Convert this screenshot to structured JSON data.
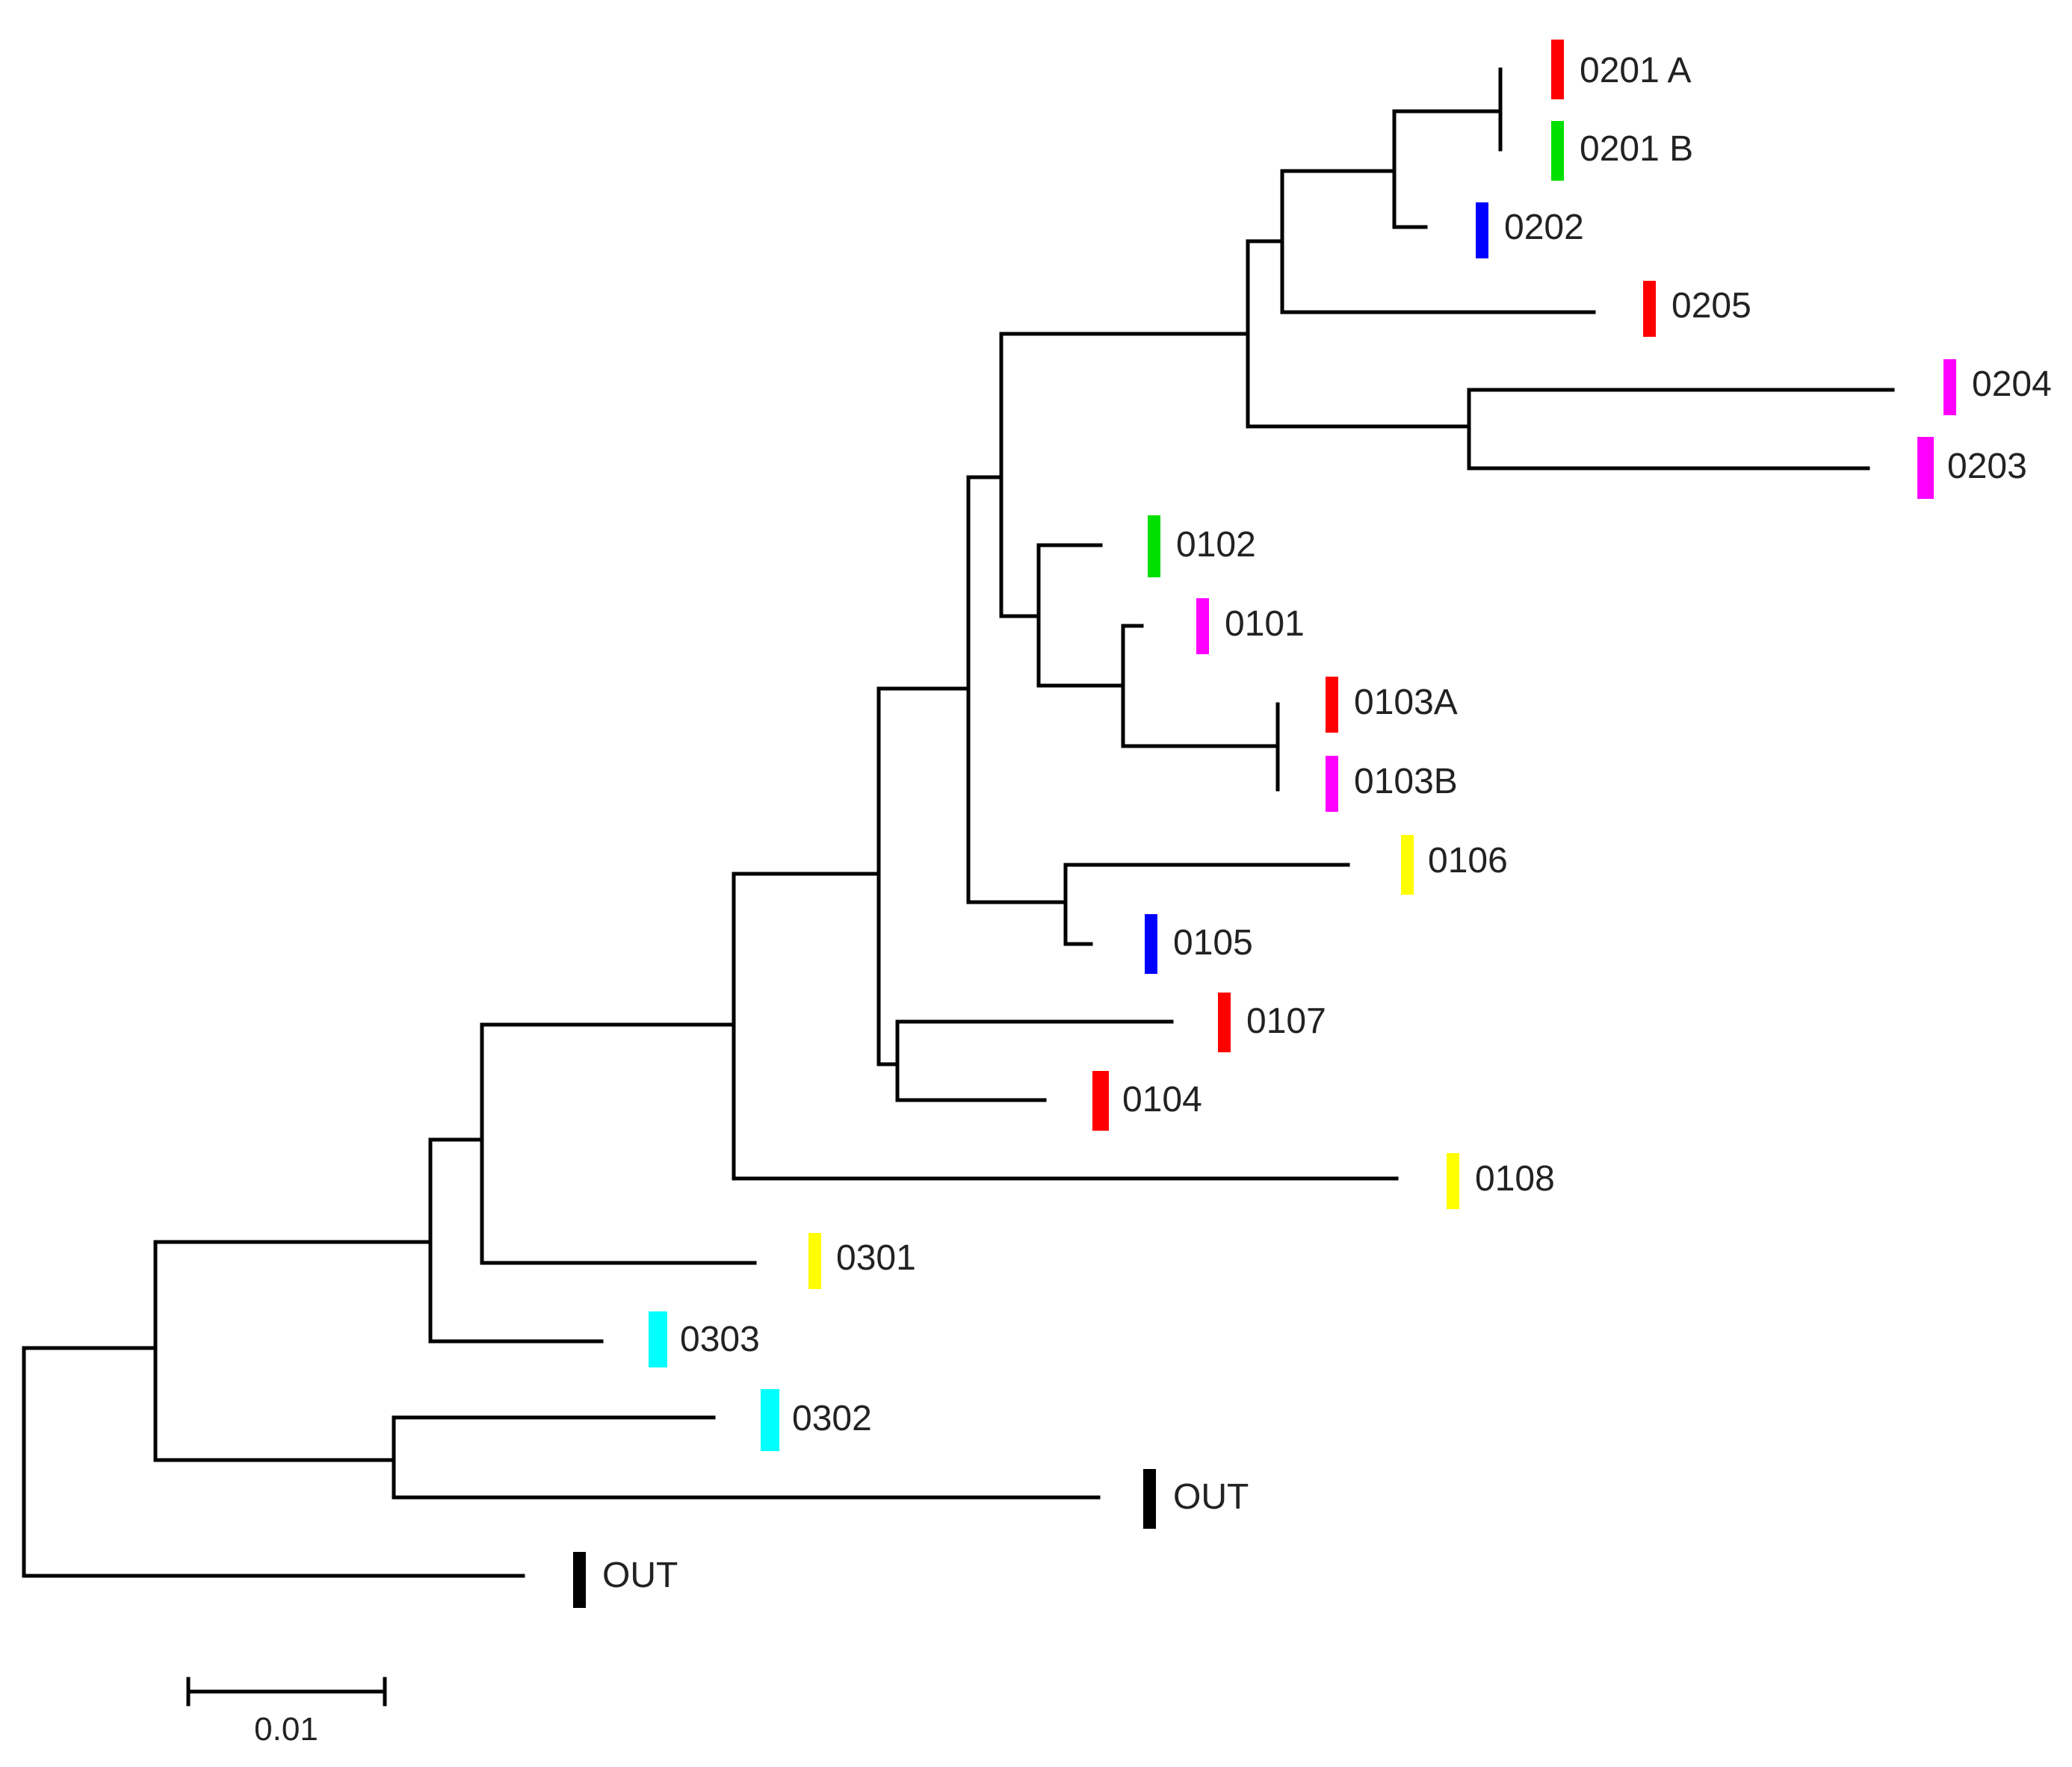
{
  "figure": {
    "type": "phylogenetic-tree",
    "scale_bar": {
      "label": "0.01",
      "length": 0.01
    }
  },
  "leaves": [
    {
      "id": "0201A",
      "label": "0201 A",
      "color": "#ff0000"
    },
    {
      "id": "0201B",
      "label": "0201 B",
      "color": "#00e000"
    },
    {
      "id": "0202",
      "label": "0202",
      "color": "#0000ff"
    },
    {
      "id": "0205",
      "label": "0205",
      "color": "#ff0000"
    },
    {
      "id": "0204",
      "label": "0204",
      "color": "#ff00ff"
    },
    {
      "id": "0203",
      "label": "0203",
      "color": "#ff00ff"
    },
    {
      "id": "0102",
      "label": "0102",
      "color": "#00e000"
    },
    {
      "id": "0101",
      "label": "0101",
      "color": "#ff00ff"
    },
    {
      "id": "0103A",
      "label": "0103A",
      "color": "#ff0000"
    },
    {
      "id": "0103B",
      "label": "0103B",
      "color": "#ff00ff"
    },
    {
      "id": "0106",
      "label": "0106",
      "color": "#ffff00"
    },
    {
      "id": "0105",
      "label": "0105",
      "color": "#0000ff"
    },
    {
      "id": "0107",
      "label": "0107",
      "color": "#ff0000"
    },
    {
      "id": "0104",
      "label": "0104",
      "color": "#ff0000"
    },
    {
      "id": "0108",
      "label": "0108",
      "color": "#ffff00"
    },
    {
      "id": "0301",
      "label": "0301",
      "color": "#ffff00"
    },
    {
      "id": "0303",
      "label": "0303",
      "color": "#00ffff"
    },
    {
      "id": "0302",
      "label": "0302",
      "color": "#00ffff"
    },
    {
      "id": "OUT1",
      "label": "OUT",
      "color": "#000000"
    },
    {
      "id": "OUT2",
      "label": "OUT",
      "color": "#000000"
    }
  ]
}
